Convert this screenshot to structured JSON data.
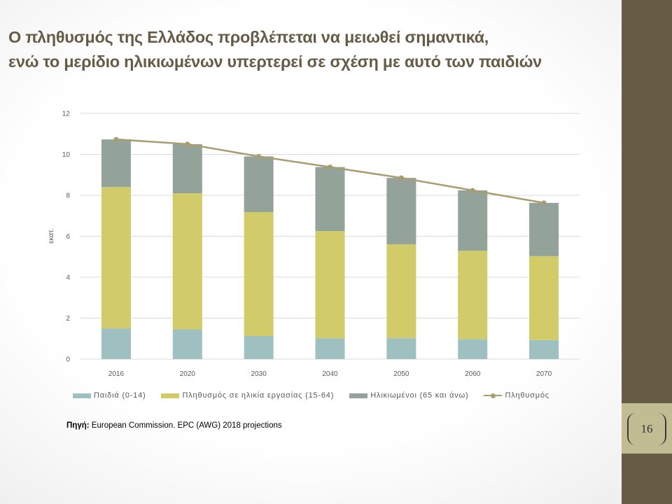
{
  "slide": {
    "title_line1": "Ο πληθυσμός της Ελλάδος προβλέπεται να μειωθεί σημαντικά,",
    "title_line2": "ενώ το μερίδιο ηλικιωμένων υπερτερεί σε σχέση με αυτό των παιδιών",
    "page_number": "16",
    "source_label": "Πηγή:",
    "source_text": "European Commission. EPC (AWG) 2018 projections"
  },
  "colors": {
    "accent_dark": "#665c46",
    "accent_light": "#c2bc93",
    "children": "#9fc0c0",
    "working_age": "#d1cb6a",
    "elderly": "#94a39a",
    "population_line": "#a89c70"
  },
  "chart_data": {
    "type": "bar",
    "stacked": true,
    "categories": [
      "2016",
      "2020",
      "2030",
      "2040",
      "2050",
      "2060",
      "2070"
    ],
    "series": [
      {
        "name": "Παιδιά (0-14)",
        "type": "bar",
        "values": [
          1.5,
          1.45,
          1.13,
          1.02,
          1.02,
          0.97,
          0.93
        ]
      },
      {
        "name": "Πληθυσμός σε ηλικία εργασίας (15-64)",
        "type": "bar",
        "values": [
          6.9,
          6.65,
          6.05,
          5.23,
          4.58,
          4.32,
          4.1
        ]
      },
      {
        "name": "Ηλικιωμένοι (65 και άνω)",
        "type": "bar",
        "values": [
          2.33,
          2.4,
          2.72,
          3.13,
          3.25,
          2.95,
          2.6
        ]
      },
      {
        "name": "Πληθυσμός",
        "type": "line",
        "values": [
          10.73,
          10.5,
          9.9,
          9.38,
          8.85,
          8.24,
          7.63
        ]
      }
    ],
    "ylabel": "εκατ.",
    "ylim": [
      0,
      12
    ],
    "yticks": [
      "0",
      "2",
      "4",
      "6",
      "8",
      "10",
      "12"
    ],
    "grid": true,
    "legend": "bottom"
  }
}
